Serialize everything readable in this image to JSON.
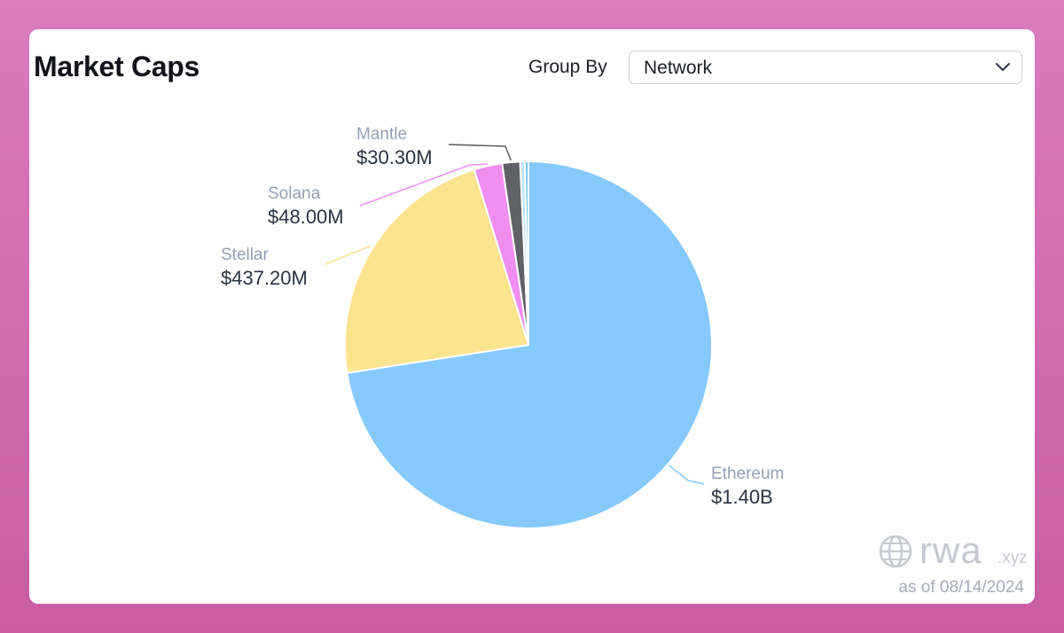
{
  "header": {
    "title": "Market Caps",
    "group_by_label": "Group By",
    "group_by_value": "Network"
  },
  "chart_data": {
    "type": "pie",
    "title": "Market Caps",
    "unit": "USD",
    "slices": [
      {
        "name": "Ethereum",
        "value": 1400000000,
        "label": "$1.40B",
        "color": "#86c9fd",
        "labeled": true
      },
      {
        "name": "Stellar",
        "value": 437200000,
        "label": "$437.20M",
        "color": "#fce38e",
        "labeled": true
      },
      {
        "name": "Solana",
        "value": 48000000,
        "label": "$48.00M",
        "color": "#f08ef0",
        "labeled": true
      },
      {
        "name": "Mantle",
        "value": 30300000,
        "label": "$30.30M",
        "color": "#5f6166",
        "labeled": true
      },
      {
        "name": "",
        "value": 8000000,
        "label": "",
        "color": "#b9e4fb",
        "labeled": false
      },
      {
        "name": "",
        "value": 6000000,
        "label": "",
        "color": "#6ec3f2",
        "labeled": false
      }
    ]
  },
  "footer": {
    "brand_name": "rwa",
    "brand_suffix": ".xyz",
    "as_of": "as of 08/14/2024"
  },
  "colors": {
    "background": "#d26fb2",
    "card": "#ffffff",
    "slice_border": "#ffffff"
  },
  "icons": {
    "select": "chevron-down-icon",
    "brand": "globe-icon"
  }
}
